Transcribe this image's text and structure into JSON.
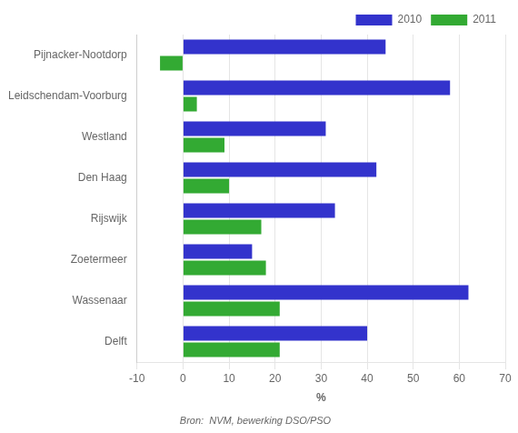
{
  "chart_data": {
    "type": "bar",
    "orientation": "horizontal",
    "categories": [
      "Delft",
      "Wassenaar",
      "Zoetermeer",
      "Rijswijk",
      "Den Haag",
      "Westland",
      "Leidschendam-Voorburg",
      "Pijnacker-Nootdorp"
    ],
    "series": [
      {
        "name": "2010",
        "color": "#3333cc",
        "values": [
          40,
          62,
          15,
          33,
          42,
          31,
          58,
          44
        ]
      },
      {
        "name": "2011",
        "color": "#33aa33",
        "values": [
          21,
          21,
          18,
          17,
          10,
          9,
          3,
          -5
        ]
      }
    ],
    "xlim": [
      -10,
      70
    ],
    "xticks": [
      -10,
      0,
      10,
      20,
      30,
      40,
      50,
      60,
      70
    ],
    "xlabel": "%",
    "caption": "Bron:  NVM, bewerking DSO/PSO",
    "grid": true,
    "legend": "upper right"
  }
}
